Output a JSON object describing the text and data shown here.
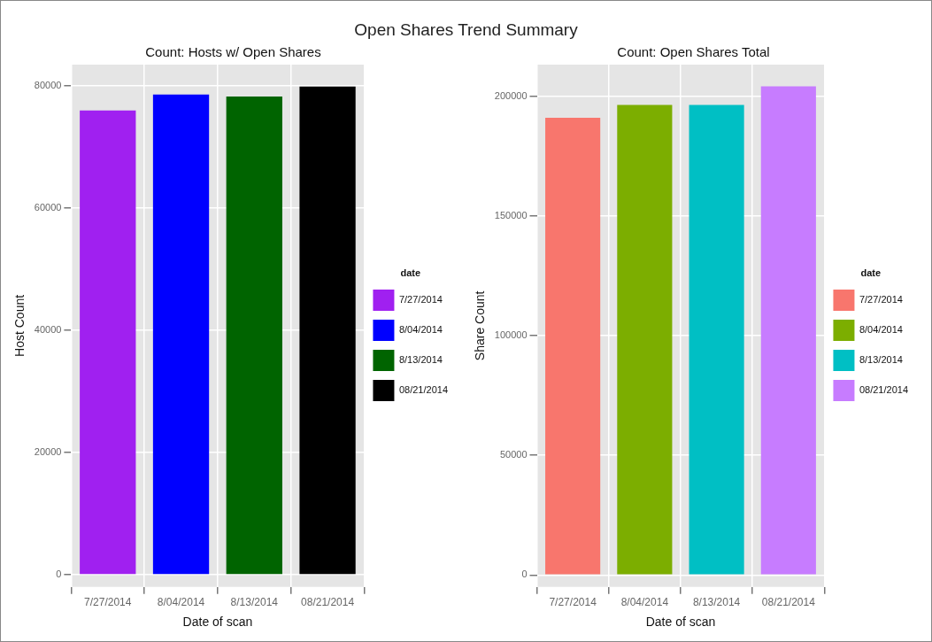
{
  "chart_data": [
    {
      "type": "bar",
      "title": "Count: Hosts w/ Open Shares",
      "annotations": [
        "Open Shares Trend Summary"
      ],
      "xlabel": "Date of scan",
      "ylabel": "Host Count",
      "legend_title": "date",
      "categories": [
        "7/27/2014",
        "8/04/2014",
        "8/13/2014",
        "08/21/2014"
      ],
      "series": [
        {
          "name": "7/27/2014",
          "color": "#a020f0",
          "values": [
            75900,
            null,
            null,
            null
          ]
        },
        {
          "name": "8/04/2014",
          "color": "#0000ff",
          "values": [
            null,
            78500,
            null,
            null
          ]
        },
        {
          "name": "8/13/2014",
          "color": "#006400",
          "values": [
            null,
            null,
            78200,
            null
          ]
        },
        {
          "name": "08/21/2014",
          "color": "#000000",
          "values": [
            null,
            null,
            null,
            79800
          ]
        }
      ],
      "ylim": [
        -2000,
        83400
      ],
      "yticks": [
        0,
        20000,
        40000,
        60000,
        80000
      ],
      "grid": true,
      "legend": "right"
    },
    {
      "type": "bar",
      "title": "Count: Open Shares Total",
      "xlabel": "Date of scan",
      "ylabel": "Share Count",
      "legend_title": "date",
      "categories": [
        "7/27/2014",
        "8/04/2014",
        "8/13/2014",
        "08/21/2014"
      ],
      "series": [
        {
          "name": "7/27/2014",
          "color": "#f8766d",
          "values": [
            191100,
            null,
            null,
            null
          ]
        },
        {
          "name": "8/04/2014",
          "color": "#7cae00",
          "values": [
            null,
            196500,
            null,
            null
          ]
        },
        {
          "name": "8/13/2014",
          "color": "#00bfc4",
          "values": [
            null,
            null,
            196500,
            null
          ]
        },
        {
          "name": "08/21/2014",
          "color": "#c77cff",
          "values": [
            null,
            null,
            null,
            204200
          ]
        }
      ],
      "ylim": [
        -5000,
        213300
      ],
      "yticks": [
        0,
        50000,
        100000,
        150000,
        200000
      ],
      "grid": true,
      "legend": "right"
    }
  ]
}
